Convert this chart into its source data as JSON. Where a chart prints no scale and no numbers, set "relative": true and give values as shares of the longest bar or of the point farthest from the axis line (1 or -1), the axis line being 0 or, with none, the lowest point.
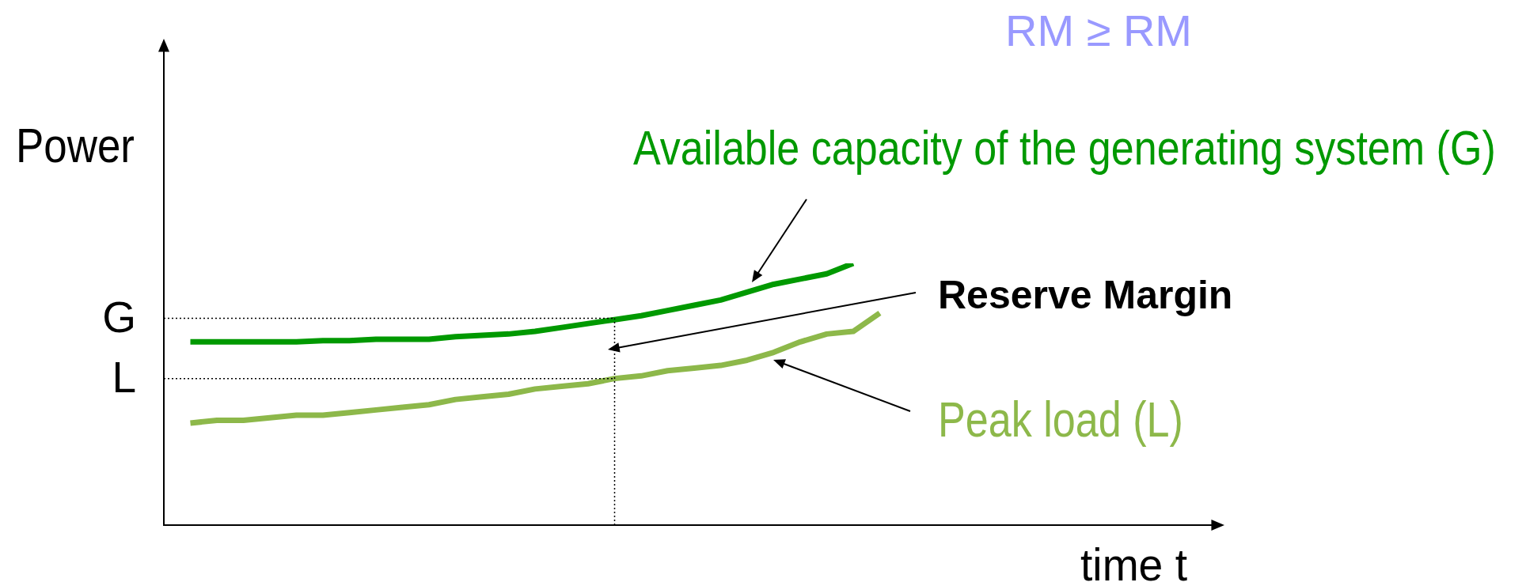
{
  "chart_data": {
    "type": "line",
    "title": "RM ≥ RM",
    "xlabel": "time t",
    "ylabel": "Power",
    "relative": true,
    "marker": "none",
    "line_style": "solid",
    "tick_labels": false,
    "categories": [
      null,
      null,
      null,
      null,
      null,
      null,
      null,
      null,
      null,
      null,
      null,
      null,
      null,
      null,
      null,
      null,
      null,
      null,
      null,
      null,
      null,
      null,
      null,
      null,
      null,
      null,
      null,
      null,
      null,
      null,
      null,
      null,
      null,
      null,
      null,
      null,
      null,
      null,
      null,
      null,
      null
    ],
    "series": [
      {
        "color": "#009900",
        "values": [
          null,
          0.7,
          0.7,
          0.7,
          0.7,
          0.7,
          0.705,
          0.705,
          0.71,
          0.71,
          0.71,
          0.72,
          0.725,
          0.73,
          0.74,
          0.755,
          0.77,
          0.785,
          0.8,
          0.82,
          0.84,
          0.86,
          0.89,
          0.92,
          0.94,
          0.96,
          1.0,
          null,
          null,
          null,
          null,
          null,
          null,
          null,
          null,
          null,
          null,
          null,
          null,
          null,
          null
        ]
      },
      {
        "color": "#8db84a",
        "values": [
          null,
          0.39,
          0.4,
          0.4,
          0.41,
          0.42,
          0.42,
          0.43,
          0.44,
          0.45,
          0.46,
          0.48,
          0.49,
          0.5,
          0.52,
          0.53,
          0.54,
          0.56,
          0.57,
          0.59,
          0.6,
          0.61,
          0.63,
          0.66,
          0.7,
          0.73,
          0.74,
          0.81,
          null,
          null,
          null,
          null,
          null,
          null,
          null,
          null,
          null,
          null,
          null,
          null,
          null
        ]
      }
    ],
    "ref_lines": [
      {
        "axis": "y",
        "value": 0.79,
        "label": "G",
        "line_style": "dotted",
        "color": "#000000"
      },
      {
        "axis": "y",
        "value": 0.56,
        "label": "L",
        "line_style": "dotted",
        "color": "#000000"
      }
    ],
    "annotations": [
      "Available capacity of the generating system (G)",
      "Peak load (L)",
      "Reserve Margin"
    ]
  }
}
